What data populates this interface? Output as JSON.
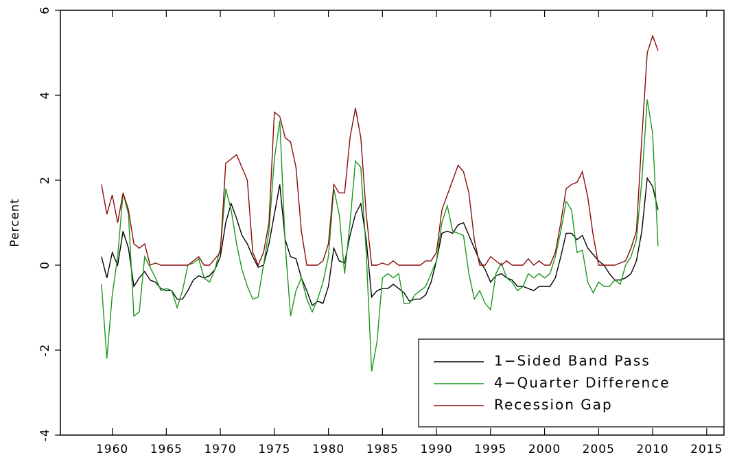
{
  "chart_data": {
    "type": "line",
    "y_label": "Percent",
    "x": [
      1959,
      1959.5,
      1960,
      1960.5,
      1961,
      1961.5,
      1962,
      1962.5,
      1963,
      1963.5,
      1964,
      1964.5,
      1965,
      1965.5,
      1966,
      1966.5,
      1967,
      1967.5,
      1968,
      1968.5,
      1969,
      1969.5,
      1970,
      1970.5,
      1971,
      1971.5,
      1972,
      1972.5,
      1973,
      1973.5,
      1974,
      1974.5,
      1975,
      1975.5,
      1976,
      1976.5,
      1977,
      1977.5,
      1978,
      1978.5,
      1979,
      1979.5,
      1980,
      1980.5,
      1981,
      1981.5,
      1982,
      1982.5,
      1983,
      1983.5,
      1984,
      1984.5,
      1985,
      1985.5,
      1986,
      1986.5,
      1987,
      1987.5,
      1988,
      1988.5,
      1989,
      1989.5,
      1990,
      1990.5,
      1991,
      1991.5,
      1992,
      1992.5,
      1993,
      1993.5,
      1994,
      1994.5,
      1995,
      1995.5,
      1996,
      1996.5,
      1997,
      1997.5,
      1998,
      1998.5,
      1999,
      1999.5,
      2000,
      2000.5,
      2001,
      2001.5,
      2002,
      2002.5,
      2003,
      2003.5,
      2004,
      2004.5,
      2005,
      2005.5,
      2006,
      2006.5,
      2007,
      2007.5,
      2008,
      2008.5,
      2009,
      2009.5,
      2010,
      2010.5
    ],
    "series": [
      {
        "name": "1−Sided Band Pass",
        "color": "#000000",
        "values": [
          0.2,
          -0.3,
          0.3,
          0.0,
          0.8,
          0.4,
          -0.5,
          -0.3,
          -0.15,
          -0.35,
          -0.4,
          -0.55,
          -0.6,
          -0.6,
          -0.8,
          -0.8,
          -0.6,
          -0.35,
          -0.25,
          -0.3,
          -0.25,
          -0.1,
          0.2,
          1.0,
          1.45,
          1.1,
          0.7,
          0.5,
          0.2,
          -0.05,
          0.0,
          0.5,
          1.2,
          1.9,
          0.6,
          0.2,
          0.15,
          -0.3,
          -0.6,
          -0.95,
          -0.85,
          -0.9,
          -0.5,
          0.4,
          0.1,
          0.05,
          0.7,
          1.2,
          1.45,
          0.6,
          -0.75,
          -0.6,
          -0.55,
          -0.55,
          -0.45,
          -0.55,
          -0.65,
          -0.85,
          -0.8,
          -0.8,
          -0.7,
          -0.4,
          0.1,
          0.75,
          0.8,
          0.75,
          0.95,
          1.0,
          0.7,
          0.4,
          0.1,
          -0.1,
          -0.4,
          -0.25,
          -0.2,
          -0.3,
          -0.35,
          -0.5,
          -0.5,
          -0.55,
          -0.6,
          -0.5,
          -0.5,
          -0.5,
          -0.3,
          0.2,
          0.75,
          0.75,
          0.6,
          0.7,
          0.4,
          0.25,
          0.1,
          0.0,
          -0.2,
          -0.35,
          -0.35,
          -0.3,
          -0.2,
          0.1,
          0.8,
          2.05,
          1.85,
          1.3
        ]
      },
      {
        "name": "4−Quarter Difference",
        "color": "#1a961a",
        "values": [
          -0.45,
          -2.2,
          -0.7,
          0.2,
          1.7,
          1.2,
          -1.2,
          -1.1,
          0.2,
          -0.05,
          -0.3,
          -0.6,
          -0.55,
          -0.6,
          -1.0,
          -0.6,
          0.0,
          0.05,
          0.15,
          -0.3,
          -0.4,
          -0.1,
          0.4,
          1.8,
          1.3,
          0.5,
          -0.1,
          -0.5,
          -0.8,
          -0.75,
          0.0,
          0.8,
          2.5,
          3.4,
          0.5,
          -1.2,
          -0.6,
          -0.3,
          -0.8,
          -1.1,
          -0.8,
          -0.4,
          0.2,
          1.8,
          1.2,
          -0.2,
          1.0,
          2.45,
          2.3,
          0.3,
          -2.5,
          -1.8,
          -0.3,
          -0.2,
          -0.3,
          -0.2,
          -0.9,
          -0.9,
          -0.7,
          -0.6,
          -0.5,
          -0.2,
          0.1,
          1.0,
          1.4,
          0.8,
          0.75,
          0.7,
          -0.2,
          -0.8,
          -0.6,
          -0.9,
          -1.05,
          -0.2,
          0.05,
          -0.3,
          -0.4,
          -0.6,
          -0.5,
          -0.2,
          -0.3,
          -0.2,
          -0.3,
          -0.2,
          0.2,
          0.8,
          1.5,
          1.3,
          0.3,
          0.35,
          -0.4,
          -0.65,
          -0.4,
          -0.5,
          -0.5,
          -0.35,
          -0.45,
          0.0,
          0.2,
          0.6,
          2.0,
          3.9,
          3.1,
          0.45
        ]
      },
      {
        "name": "Recession Gap",
        "color": "#8b0a0a",
        "values": [
          1.9,
          1.2,
          1.65,
          1.0,
          1.7,
          1.3,
          0.5,
          0.4,
          0.5,
          0.0,
          0.05,
          0,
          0,
          0,
          0,
          0,
          0,
          0.1,
          0.2,
          0,
          0,
          0.15,
          0.3,
          2.4,
          2.5,
          2.6,
          2.3,
          2.0,
          0.3,
          0.0,
          0.3,
          1.0,
          3.6,
          3.5,
          3.0,
          2.9,
          2.3,
          0.8,
          0,
          0,
          0,
          0.1,
          0.5,
          1.9,
          1.7,
          1.7,
          3.0,
          3.7,
          3.0,
          1.2,
          0,
          0,
          0.05,
          0,
          0.1,
          0,
          0,
          0,
          0,
          0,
          0.1,
          0.1,
          0.3,
          1.3,
          1.65,
          2.0,
          2.35,
          2.2,
          1.7,
          0.6,
          0,
          0,
          0.2,
          0.1,
          0,
          0.1,
          0,
          0,
          0,
          0.15,
          0,
          0.1,
          0,
          0,
          0.3,
          1.0,
          1.8,
          1.9,
          1.95,
          2.2,
          1.6,
          0.7,
          0,
          0,
          0,
          0,
          0.05,
          0.1,
          0.4,
          0.8,
          3.0,
          5.0,
          5.4,
          5.05
        ]
      }
    ],
    "xlim": [
      1955.2,
      2016.6
    ],
    "ylim": [
      -4,
      6
    ],
    "xticks": [
      1960,
      1965,
      1970,
      1975,
      1980,
      1985,
      1990,
      1995,
      2000,
      2005,
      2010,
      2015
    ],
    "yticks": [
      -4,
      -2,
      0,
      2,
      4,
      6
    ],
    "legend": "lower right"
  }
}
